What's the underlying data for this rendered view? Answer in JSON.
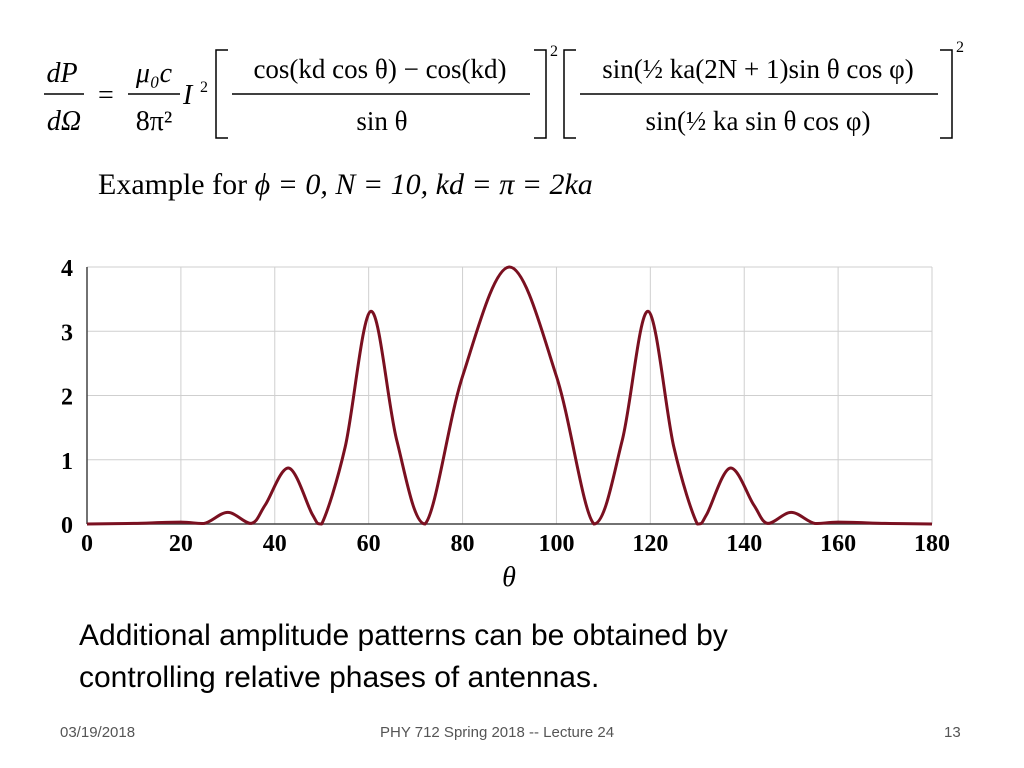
{
  "equation": {
    "lhs_num": "dP",
    "lhs_den": "dΩ",
    "equals": "=",
    "coef_num": "μ₀c",
    "coef_den": "8π²",
    "current": "I",
    "current_exp": "2",
    "frac1_num": "cos(kd cos θ) − cos(kd)",
    "frac1_den": "sin θ",
    "frac1_exp": "2",
    "frac2_num": "sin(½ ka(2N + 1)sin θ cos φ)",
    "frac2_den": "sin(½ ka sin θ cos φ)",
    "frac2_exp": "2"
  },
  "example": {
    "lead": "Example for ",
    "math": "ϕ = 0, N = 10,  kd = π = 2ka"
  },
  "chart_data": {
    "type": "line",
    "xlabel": "θ",
    "ylabel": "",
    "xlim": [
      0,
      180
    ],
    "ylim": [
      0,
      4
    ],
    "xticks": [
      0,
      20,
      40,
      60,
      80,
      100,
      120,
      140,
      160,
      180
    ],
    "yticks": [
      0,
      1,
      2,
      3,
      4
    ],
    "grid": true,
    "line_color": "#7a1020",
    "series": [
      {
        "x": [
          0,
          10,
          20,
          25,
          30,
          35,
          38,
          43,
          48,
          50,
          55,
          60.5,
          66,
          72,
          80,
          90,
          100,
          108,
          114,
          119.5,
          125,
          130,
          132,
          137,
          142,
          145,
          150,
          155,
          160,
          170,
          180
        ],
        "values": [
          0,
          0.01,
          0.03,
          0.01,
          0.18,
          0.01,
          0.3,
          0.87,
          0.15,
          0.0,
          1.2,
          3.31,
          1.3,
          0.0,
          2.3,
          4.0,
          2.3,
          0.0,
          1.3,
          3.31,
          1.2,
          0.0,
          0.15,
          0.87,
          0.3,
          0.01,
          0.18,
          0.01,
          0.03,
          0.01,
          0
        ]
      }
    ]
  },
  "caption": {
    "line1": "Additional amplitude patterns can be obtained by",
    "line2": "controlling relative phases of antennas."
  },
  "footer": {
    "date": "03/19/2018",
    "title": "PHY 712  Spring 2018 -- Lecture 24",
    "page": "13"
  }
}
